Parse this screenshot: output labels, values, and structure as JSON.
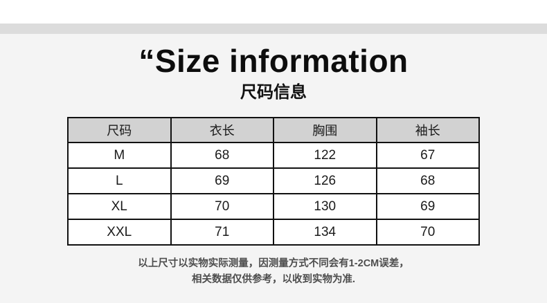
{
  "page": {
    "title_en": "“Size information",
    "title_zh": "尺码信息",
    "colors": {
      "page_background": "#f4f4f4",
      "top_strip": "#ffffff",
      "divider_band": "#dcdcdc",
      "table_header_background": "#d2d2d2",
      "table_border": "#111111",
      "note_text": "#4d4d4d"
    }
  },
  "table": {
    "headers": [
      "尺码",
      "衣长",
      "胸围",
      "袖长"
    ],
    "rows": [
      [
        "M",
        "68",
        "122",
        "67"
      ],
      [
        "L",
        "69",
        "126",
        "68"
      ],
      [
        "XL",
        "70",
        "130",
        "69"
      ],
      [
        "XXL",
        "71",
        "134",
        "70"
      ]
    ]
  },
  "notes": {
    "line1": "以上尺寸以实物实际测量，因测量方式不同会有1-2CM误差，",
    "line2": "相关数据仅供参考，以收到实物为准."
  }
}
